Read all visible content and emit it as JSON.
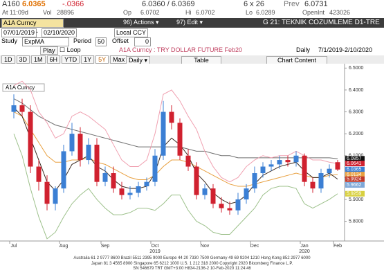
{
  "quote": {
    "ticker": "A160",
    "last": "6.0365",
    "change": "-.0366",
    "bid_ask": "6.0360 / 6.0369",
    "size": "6 x 26",
    "prev_label": "Prev",
    "prev": "6.0731",
    "time_label": "At",
    "time": "11:09d",
    "vol_label": "Vol",
    "vol": "28896",
    "open_label": "Op",
    "open": "6.0702",
    "hi_label": "Hi",
    "hi": "6.0702",
    "lo_label": "Lo",
    "lo": "6.0289",
    "oi_label": "OpenInt",
    "oi": "423026"
  },
  "toolbar": {
    "security": "A1A Curncy",
    "actions": "96) Actions ▾",
    "edit": "97) Edit ▾",
    "page_title": "G 21: TEKNIK COZUMLEME D1-TRE",
    "start_date": "07/01/2019",
    "dash": "-",
    "end_date": "02/10/2020",
    "currency": "Local CCY",
    "study_label": "Study",
    "study": "ExpMA",
    "period_label": "Period",
    "period": "50",
    "offset_label": "Offset",
    "offset": "0",
    "play": "Play",
    "loop": "Loop",
    "frequency": "Daily",
    "range": "7/1/2019-2/10/2020"
  },
  "tabs": [
    "1D",
    "3D",
    "1M",
    "6H",
    "YTD",
    "1Y",
    "5Y",
    "Max"
  ],
  "daily_menu": "Daily ▾",
  "table": "Table",
  "chart_content": "Chart Content",
  "chart_data": {
    "type": "candlestick",
    "title": "A1A Curncy : TRY DOLLAR FUTURE Feb20",
    "legend": "A1A Curncy",
    "categories": [
      "Jul",
      null,
      null,
      null,
      null,
      null,
      "Aug",
      null,
      null,
      null,
      null,
      "Sep",
      null,
      null,
      null,
      null,
      null,
      "Oct",
      null,
      null,
      null,
      null,
      null,
      "Nov",
      null,
      null,
      null,
      null,
      null,
      "Dec",
      null,
      null,
      null,
      null,
      null,
      "Jan",
      null,
      null,
      null,
      "Feb"
    ],
    "years": [
      {
        "label": "2019",
        "at": "Oct"
      },
      {
        "label": "2020",
        "at": "Jan"
      }
    ],
    "open": [
      6.3,
      6.33,
      6.3,
      6.05,
      5.98,
      5.88,
      5.95,
      6.12,
      6.2,
      6.08,
      6.15,
      5.98,
      6.02,
      5.95,
      5.92,
      5.93,
      5.96,
      5.98,
      6.1,
      6.3,
      6.25,
      6.1,
      6.05,
      5.92,
      5.95,
      5.88,
      5.86,
      5.85,
      5.9,
      5.95,
      6.02,
      6.05,
      6.06,
      6.08,
      6.07,
      6.1,
      5.98,
      5.95,
      6.02,
      6.07
    ],
    "high": [
      6.38,
      6.36,
      6.33,
      6.08,
      6.01,
      5.96,
      6.15,
      6.25,
      6.23,
      6.18,
      6.18,
      6.05,
      6.05,
      5.98,
      5.96,
      5.98,
      6.0,
      6.13,
      6.35,
      6.33,
      6.27,
      6.13,
      6.07,
      5.97,
      5.97,
      5.91,
      5.89,
      5.93,
      5.97,
      6.05,
      6.07,
      6.08,
      6.1,
      6.1,
      6.12,
      6.11,
      6.0,
      6.04,
      6.06,
      6.08
    ],
    "low": [
      6.27,
      6.28,
      6.02,
      5.94,
      5.85,
      5.85,
      5.93,
      6.1,
      6.05,
      6.06,
      5.96,
      5.96,
      5.93,
      5.9,
      5.9,
      5.91,
      5.94,
      5.96,
      6.08,
      6.22,
      6.08,
      6.03,
      5.9,
      5.9,
      5.86,
      5.84,
      5.83,
      5.83,
      5.88,
      5.93,
      6.0,
      6.03,
      6.04,
      6.05,
      6.05,
      5.96,
      5.93,
      5.93,
      6.0,
      6.03
    ],
    "close": [
      6.33,
      6.3,
      6.05,
      5.98,
      5.88,
      5.95,
      6.12,
      6.2,
      6.08,
      6.15,
      5.98,
      6.02,
      5.95,
      5.92,
      5.93,
      5.96,
      5.98,
      6.1,
      6.3,
      6.25,
      6.1,
      6.05,
      5.92,
      5.95,
      5.88,
      5.86,
      5.85,
      5.9,
      5.95,
      6.02,
      6.05,
      6.06,
      6.08,
      6.07,
      6.1,
      5.98,
      5.95,
      6.02,
      6.04,
      6.0365
    ],
    "up_color": "#3b7fd4",
    "down_color": "#d0212f",
    "series": [
      {
        "color": "#6e6e6e",
        "values": [
          6.36,
          6.34,
          6.31,
          6.28,
          6.26,
          6.24,
          6.23,
          6.22,
          6.21,
          6.2,
          6.19,
          6.18,
          6.17,
          6.16,
          6.15,
          6.14,
          6.14,
          6.14,
          6.14,
          6.14,
          6.14,
          6.13,
          6.12,
          6.12,
          6.11,
          6.1,
          6.1,
          6.09,
          6.09,
          6.09,
          6.09,
          6.09,
          6.09,
          6.09,
          6.09,
          6.09,
          6.09,
          6.09,
          6.09,
          6.0857
        ]
      },
      {
        "color": "#e8a040",
        "values": [
          6.3,
          6.28,
          6.22,
          6.16,
          6.1,
          6.07,
          6.07,
          6.08,
          6.08,
          6.09,
          6.07,
          6.06,
          6.04,
          6.02,
          6.0,
          5.99,
          5.99,
          6.01,
          6.05,
          6.08,
          6.08,
          6.07,
          6.05,
          6.03,
          6.01,
          5.99,
          5.97,
          5.96,
          5.96,
          5.97,
          5.98,
          5.99,
          6.0,
          6.01,
          6.02,
          6.01,
          6.0,
          6.0,
          6.01,
          6.0134
        ]
      },
      {
        "color": "#3a2a20",
        "values": [
          6.32,
          6.28,
          6.18,
          6.08,
          5.98,
          5.94,
          5.99,
          6.06,
          6.08,
          6.1,
          6.05,
          6.03,
          5.99,
          5.96,
          5.95,
          5.95,
          5.96,
          6.02,
          6.14,
          6.18,
          6.15,
          6.1,
          6.02,
          5.98,
          5.93,
          5.9,
          5.88,
          5.89,
          5.92,
          5.97,
          6.01,
          6.03,
          6.05,
          6.06,
          6.07,
          6.03,
          6.0,
          6.0,
          6.02,
          5.9924
        ]
      },
      {
        "color": "#f0a0b0",
        "values": [
          6.42,
          6.44,
          6.4,
          6.3,
          6.25,
          6.18,
          6.2,
          6.28,
          6.3,
          6.28,
          6.25,
          6.22,
          6.15,
          6.08,
          6.05,
          6.05,
          6.08,
          6.2,
          6.38,
          6.4,
          6.35,
          6.28,
          6.22,
          6.12,
          6.05,
          6.0,
          5.98,
          6.0,
          6.05,
          6.08,
          6.1,
          6.09,
          6.1,
          6.1,
          6.12,
          6.1,
          6.08,
          6.08,
          6.07,
          6.0641
        ]
      },
      {
        "color": "#9cc08a",
        "values": [
          6.2,
          6.1,
          5.95,
          5.82,
          5.72,
          5.75,
          5.82,
          5.88,
          5.92,
          5.95,
          5.9,
          5.86,
          5.83,
          5.83,
          5.84,
          5.86,
          5.86,
          5.85,
          5.88,
          5.92,
          5.92,
          5.85,
          5.8,
          5.78,
          5.75,
          5.74,
          5.74,
          5.78,
          5.82,
          5.86,
          5.92,
          5.95,
          5.96,
          5.96,
          5.95,
          5.88,
          5.86,
          5.88,
          5.9,
          5.9259
        ]
      }
    ],
    "last_values": {
      "values": [
        6.0857,
        6.0641,
        6.0365,
        6.0134,
        5.9924,
        5.9662,
        5.9259
      ],
      "colors": [
        "#111111",
        "#d0212f",
        "#3b7fd4",
        "#e8a040",
        "#c0392b",
        "#7fa8d8",
        "#d8d040"
      ]
    },
    "ylim": [
      5.71,
      6.52
    ],
    "yticks": [
      {
        "value": 5.8,
        "label": "5.8000"
      },
      {
        "value": 5.9,
        "label": "5.9000"
      },
      {
        "value": 6.0,
        "label": "6.0000"
      },
      {
        "value": 6.1,
        "label": "6.1000"
      },
      {
        "value": 6.2,
        "label": "6.2000"
      },
      {
        "value": 6.3,
        "label": "6.3000"
      },
      {
        "value": 6.4,
        "label": "6.4000"
      },
      {
        "value": 6.5,
        "label": "6.5000"
      }
    ],
    "grid": false
  },
  "footer": [
    "Australia 61 2 9777 8600 Brazil 5511 2395 9000 Europe 44 20 7330 7500 Germany 49 69 9204 1210 Hong Kong 852 2977 6000",
    "Japan 81 3 4565 8900 Singapore 65 6212 1000 U.S. 1 212 318 2000 Copyright 2020 Bloomberg Finance L.P.",
    "SN 546679 TRT GMT+3:00 H834-2136-2 10-Feb-2020 11:24:46"
  ]
}
